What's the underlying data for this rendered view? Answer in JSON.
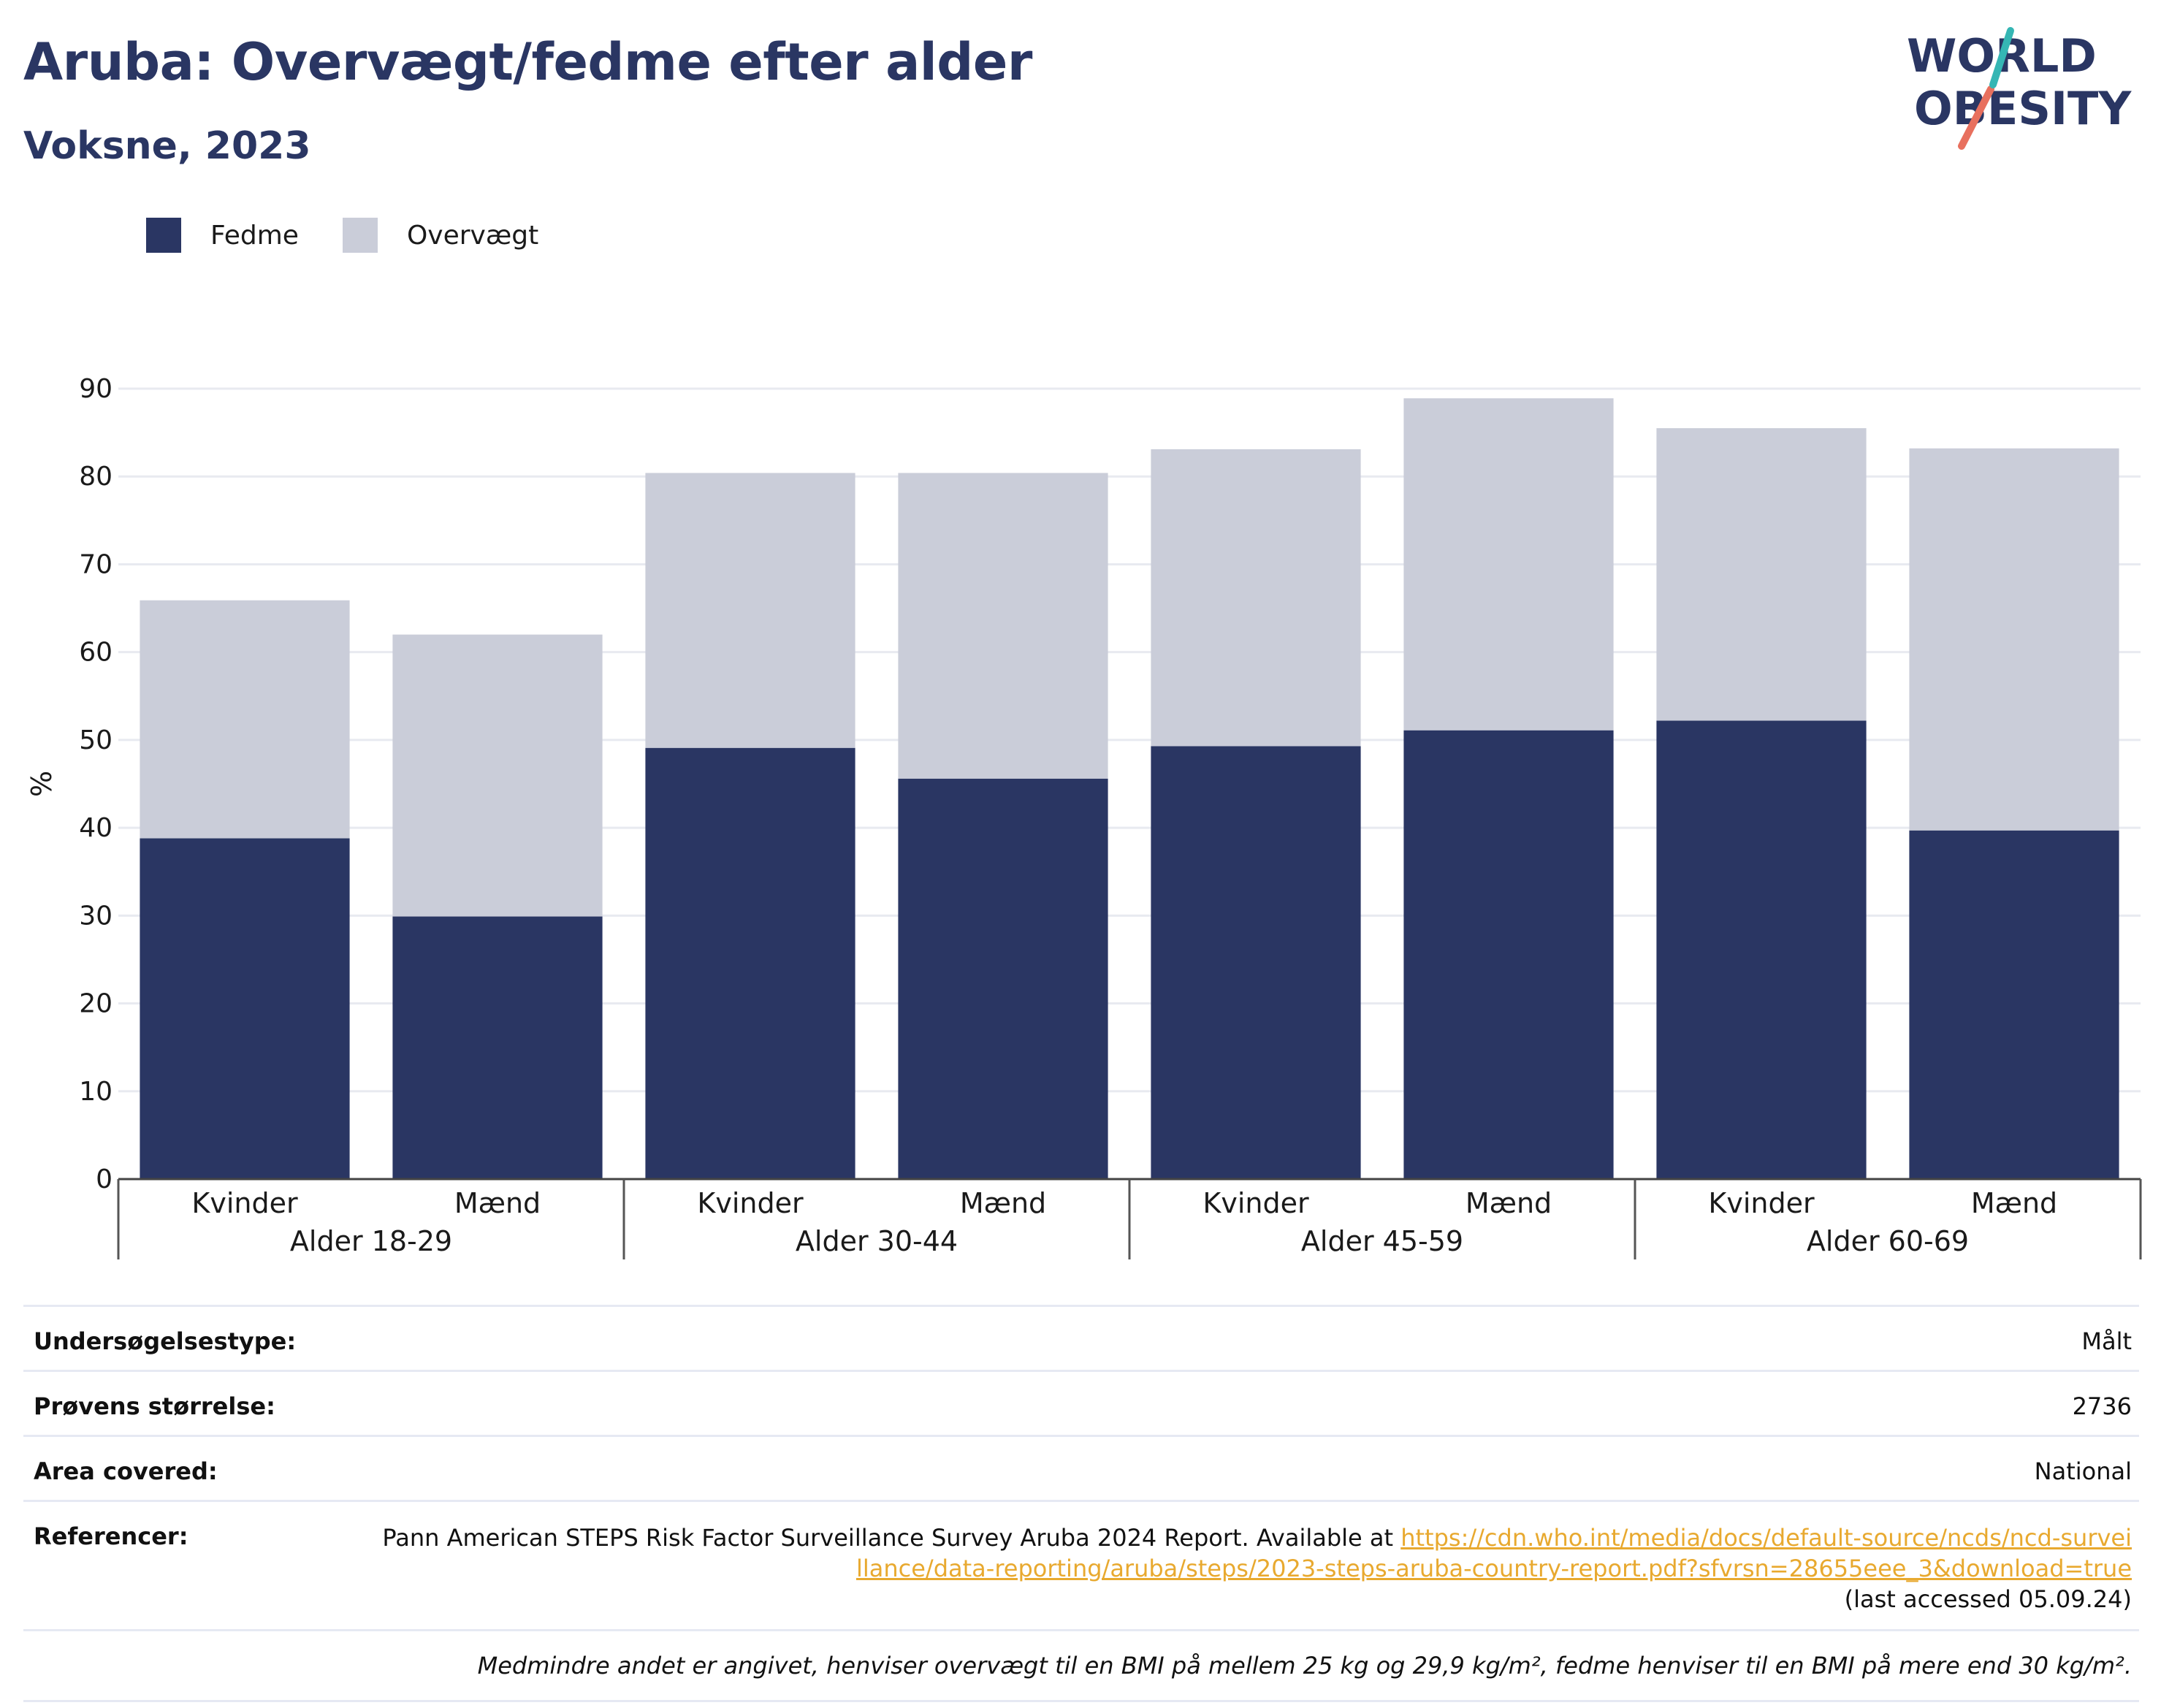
{
  "header": {
    "title": "Aruba: Overvægt/fedme efter alder",
    "subtitle": "Voksne, 2023"
  },
  "logo": {
    "line1": "WORLD",
    "line2": "OBESITY"
  },
  "legend": {
    "items": [
      {
        "label": "Fedme",
        "color": "#2a3663"
      },
      {
        "label": "Overvægt",
        "color": "#cacdd9"
      }
    ]
  },
  "chart_data": {
    "type": "bar",
    "stacked": true,
    "ylabel": "%",
    "ylim": [
      0,
      90
    ],
    "yticks": [
      0,
      10,
      20,
      30,
      40,
      50,
      60,
      70,
      80,
      90
    ],
    "grid": true,
    "legend_position": "top-left",
    "groups": [
      "Alder 18-29",
      "Alder 30-44",
      "Alder 45-59",
      "Alder 60-69"
    ],
    "categories": [
      "Kvinder",
      "Mænd",
      "Kvinder",
      "Mænd",
      "Kvinder",
      "Mænd",
      "Kvinder",
      "Mænd"
    ],
    "series": [
      {
        "name": "Fedme",
        "color": "#2a3663",
        "values": [
          38.8,
          29.9,
          49.1,
          45.6,
          49.3,
          51.1,
          52.2,
          39.7
        ]
      },
      {
        "name": "Overvægt",
        "color": "#cacdd9",
        "values": [
          27.1,
          32.1,
          31.3,
          34.8,
          33.8,
          37.8,
          33.3,
          43.5
        ]
      }
    ]
  },
  "info": {
    "survey_type": {
      "label": "Undersøgelsestype:",
      "value": "Målt"
    },
    "sample_size": {
      "label": "Prøvens størrelse:",
      "value": "2736"
    },
    "area": {
      "label": "Area covered:",
      "value": "National"
    },
    "references": {
      "label": "Referencer:",
      "text": "Pann American STEPS Risk Factor Surveillance Survey Aruba 2024 Report. Available at ",
      "link": "https://cdn.who.int/media/docs/default-source/ncds/ncd-surveillance/data-reporting/aruba/steps/2023-steps-aruba-country-report.pdf?sfvrsn=28655eee_3&download=true",
      "accessed": "(last accessed 05.09.24)"
    },
    "footnote": "Medmindre andet er angivet, henviser overvægt til en BMI på mellem 25 kg og 29,9 kg/m², fedme henviser til en BMI på mere end 30 kg/m²."
  }
}
